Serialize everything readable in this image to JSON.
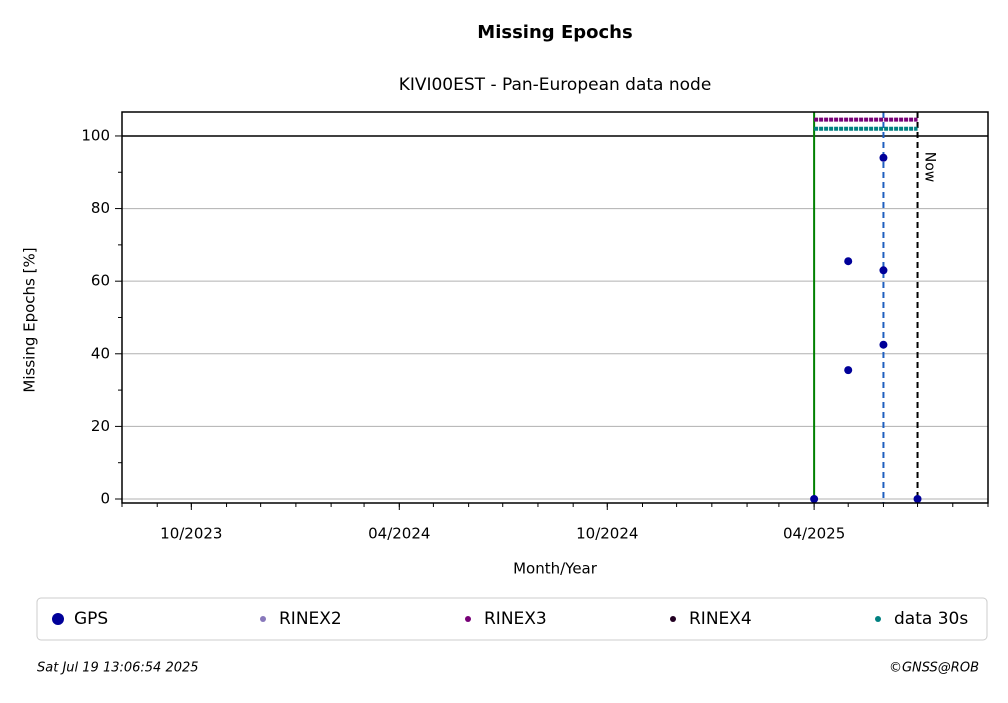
{
  "chart_data": {
    "type": "scatter",
    "title": "Missing Epochs",
    "subtitle": "KIVI00EST - Pan-European data node",
    "x_label": "Month/Year",
    "y_label": "Missing Epochs [%]",
    "xlim": [
      "2023-08",
      "2025-09"
    ],
    "xticks": [
      {
        "value": "2023-10",
        "label": "10/2023"
      },
      {
        "value": "2024-04",
        "label": "04/2024"
      },
      {
        "value": "2024-10",
        "label": "10/2024"
      },
      {
        "value": "2025-04",
        "label": "04/2025"
      }
    ],
    "ylim": [
      -1.1,
      106.6
    ],
    "yticks": [
      0,
      20,
      40,
      60,
      80,
      100
    ],
    "grid": true,
    "series": [
      {
        "name": "GPS",
        "color": "#000099",
        "x": [
          "2025-04",
          "2025-05",
          "2025-05",
          "2025-06",
          "2025-06",
          "2025-06",
          "2025-07"
        ],
        "values": [
          0,
          65.5,
          35.5,
          94,
          63,
          42.5,
          0
        ]
      },
      {
        "name": "RINEX2",
        "color": "#8878bb",
        "x": [],
        "values": []
      },
      {
        "name": "RINEX3",
        "color": "#770077",
        "x": [
          "2025-04",
          "2025-07"
        ],
        "values": [
          104.5,
          104.5
        ]
      },
      {
        "name": "RINEX4",
        "color": "#220022",
        "x": [],
        "values": []
      },
      {
        "name": "data 30s",
        "color": "#008080",
        "x": [
          "2025-04",
          "2025-07"
        ],
        "values": [
          102,
          102
        ]
      }
    ],
    "vlines": [
      {
        "x": "2025-04",
        "color": "#008000"
      },
      {
        "x": "2025-06",
        "color": "#1f5fbf"
      },
      {
        "x": "2025-07",
        "color": "#000000",
        "label": "Now"
      }
    ],
    "footer_left": "Sat Jul 19 13:06:54 2025",
    "footer_right": "©GNSS@ROB"
  }
}
